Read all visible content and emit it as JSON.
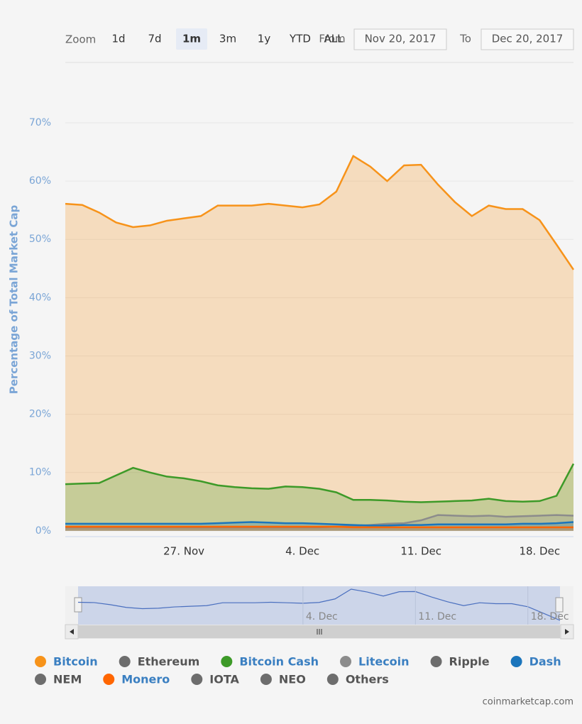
{
  "chart_data": {
    "type": "area",
    "range_selector": {
      "label": "Zoom",
      "buttons": [
        "1d",
        "7d",
        "1m",
        "3m",
        "1y",
        "YTD",
        "ALL"
      ],
      "selected": 2,
      "from_label": "From",
      "from": "Nov 20, 2017",
      "to_label": "To",
      "to": "Dec 20, 2017"
    },
    "y_label": "Percentage of Total Market Cap",
    "ylim": [
      -1,
      70
    ],
    "yticks": [
      {
        "value": 0,
        "label": "0%"
      },
      {
        "value": 10,
        "label": "10%"
      },
      {
        "value": 20,
        "label": "20%"
      },
      {
        "value": 30,
        "label": "30%"
      },
      {
        "value": 40,
        "label": "40%"
      },
      {
        "value": 50,
        "label": "50%"
      },
      {
        "value": 60,
        "label": "60%"
      },
      {
        "value": 70,
        "label": "70%"
      }
    ],
    "grid": true,
    "categories": [
      null,
      null,
      null,
      null,
      null,
      null,
      null,
      "27. Nov",
      null,
      null,
      null,
      null,
      null,
      null,
      "4. Dec",
      null,
      null,
      null,
      null,
      null,
      null,
      "11. Dec",
      null,
      null,
      null,
      null,
      null,
      null,
      "18. Dec",
      null,
      null
    ],
    "series": [
      {
        "name": "Bitcoin",
        "color": "#f7931a",
        "visible": true,
        "values": [
          56.1,
          55.9,
          54.6,
          52.9,
          52.1,
          52.4,
          53.2,
          53.6,
          54.0,
          55.8,
          55.8,
          55.8,
          56.1,
          55.8,
          55.5,
          56.0,
          58.2,
          64.3,
          62.5,
          60.0,
          62.7,
          62.8,
          59.4,
          56.4,
          54.0,
          55.8,
          55.2,
          55.2,
          53.3,
          49.1,
          44.8
        ]
      },
      {
        "name": "Ethereum",
        "color": "#6d6d6d",
        "visible": false
      },
      {
        "name": "Bitcoin Cash",
        "color": "#3d9a28",
        "visible": true,
        "values": [
          8.0,
          8.1,
          8.2,
          9.5,
          10.8,
          10.0,
          9.3,
          9.0,
          8.5,
          7.8,
          7.5,
          7.3,
          7.2,
          7.6,
          7.5,
          7.2,
          6.6,
          5.3,
          5.3,
          5.2,
          5.0,
          4.9,
          5.0,
          5.1,
          5.2,
          5.5,
          5.1,
          5.0,
          5.1,
          6.0,
          11.5
        ]
      },
      {
        "name": "Litecoin",
        "color": "#8c8c8c",
        "visible": true,
        "values": [
          0.6,
          0.6,
          0.6,
          0.6,
          0.6,
          0.6,
          0.6,
          0.6,
          0.6,
          0.6,
          0.6,
          0.6,
          0.6,
          0.6,
          0.6,
          0.6,
          0.7,
          0.8,
          1.0,
          1.2,
          1.3,
          1.8,
          2.7,
          2.6,
          2.5,
          2.6,
          2.4,
          2.5,
          2.6,
          2.7,
          2.6
        ]
      },
      {
        "name": "Ripple",
        "color": "#6d6d6d",
        "visible": false
      },
      {
        "name": "Dash",
        "color": "#1b75bc",
        "visible": true,
        "values": [
          1.2,
          1.2,
          1.2,
          1.2,
          1.2,
          1.2,
          1.2,
          1.2,
          1.2,
          1.3,
          1.4,
          1.5,
          1.4,
          1.3,
          1.3,
          1.2,
          1.1,
          1.0,
          0.9,
          0.9,
          1.0,
          1.0,
          1.1,
          1.1,
          1.1,
          1.1,
          1.1,
          1.2,
          1.2,
          1.3,
          1.5
        ]
      },
      {
        "name": "NEM",
        "color": "#6d6d6d",
        "visible": false
      },
      {
        "name": "Monero",
        "color": "#ff6600",
        "visible": true,
        "values": [
          0.7,
          0.7,
          0.7,
          0.7,
          0.7,
          0.7,
          0.7,
          0.7,
          0.7,
          0.7,
          0.7,
          0.7,
          0.7,
          0.7,
          0.7,
          0.7,
          0.7,
          0.6,
          0.6,
          0.6,
          0.6,
          0.6,
          0.6,
          0.6,
          0.6,
          0.6,
          0.6,
          0.6,
          0.6,
          0.6,
          0.6
        ]
      },
      {
        "name": "IOTA",
        "color": "#6d6d6d",
        "visible": false
      },
      {
        "name": "NEO",
        "color": "#6d6d6d",
        "visible": false
      },
      {
        "name": "Others",
        "color": "#6d6d6d",
        "visible": false
      }
    ],
    "credit": "coinmarketcap.com"
  }
}
